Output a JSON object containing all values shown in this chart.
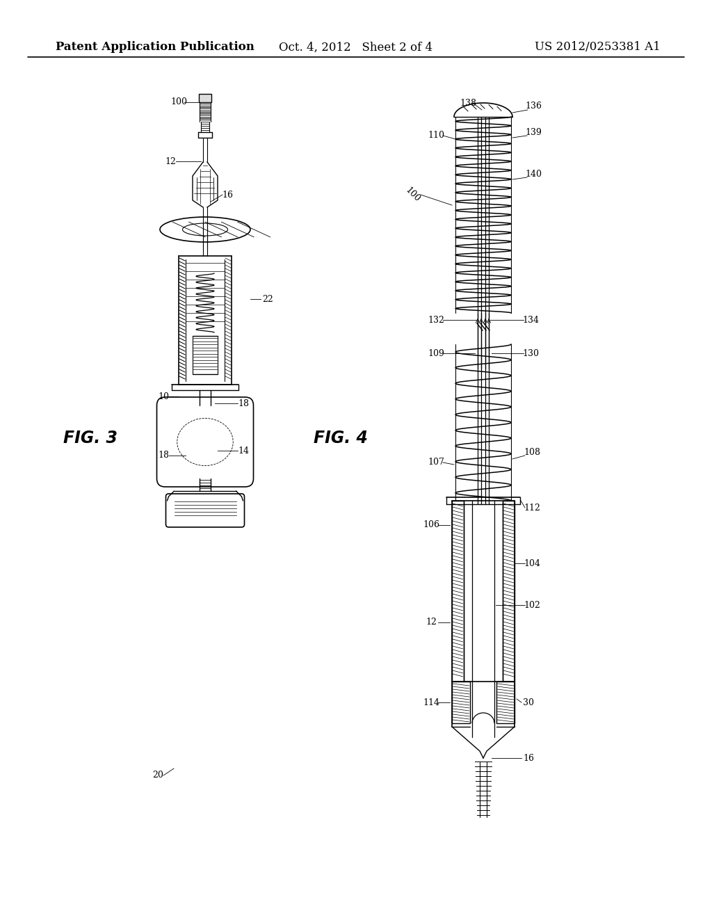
{
  "bg_color": "#ffffff",
  "header_left": "Patent Application Publication",
  "header_center": "Oct. 4, 2012   Sheet 2 of 4",
  "header_right": "US 2012/0253381 A1",
  "header_fontsize": 12,
  "fig3_label": "FIG. 3",
  "fig4_label": "FIG. 4",
  "label_fontsize": 17,
  "ref_fontsize": 9,
  "line_color": "#000000"
}
